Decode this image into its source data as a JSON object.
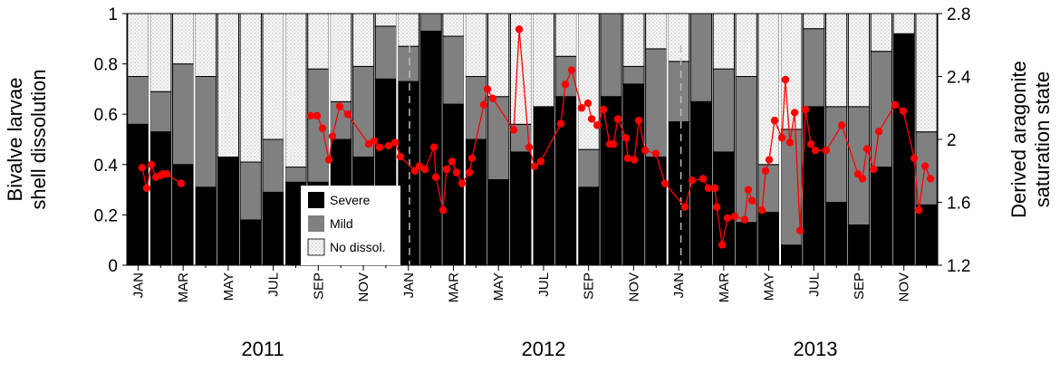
{
  "chart_data": {
    "type": "bar",
    "subtype": "stacked-bar-with-line",
    "ylabel_left": [
      "Bivalve larvae",
      "shell dissolution"
    ],
    "ylabel_right": [
      "Derived aragonite",
      "saturation state"
    ],
    "ylim_left": [
      0,
      1
    ],
    "ylim_right": [
      1.2,
      2.8
    ],
    "yticks_left": [
      "0",
      "0.2",
      "0.4",
      "0.6",
      "0.8",
      "1"
    ],
    "yticks_right": [
      "1.2",
      "1.6",
      "2",
      "2.4",
      "2.8"
    ],
    "month_tick_labels": [
      "JAN",
      "MAR",
      "MAY",
      "JUL",
      "SEP",
      "NOV",
      "JAN",
      "MAR",
      "MAY",
      "JUL",
      "SEP",
      "NOV",
      "JAN",
      "MAR",
      "MAY",
      "JUL",
      "SEP",
      "NOV"
    ],
    "years": [
      "2011",
      "2012",
      "2013"
    ],
    "legend": {
      "position": "bottom-left-center",
      "entries": [
        "Severe",
        "Mild",
        "No dissol."
      ]
    },
    "colors": {
      "severe": "#000000",
      "mild": "#808080",
      "none": "#f4f4f4",
      "line": "#ff0000"
    },
    "series": [
      {
        "name": "Severe",
        "values": [
          0.56,
          0.53,
          0.4,
          0.31,
          0.43,
          0.18,
          0.29,
          0.33,
          0.33,
          0.5,
          0.43,
          0.74,
          0.73,
          0.93,
          0.64,
          0.5,
          0.34,
          0.45,
          0.63,
          0.67,
          0.31,
          0.67,
          0.72,
          0.43,
          0.57,
          0.65,
          0.45,
          0.17,
          0.21,
          0.08,
          0.63,
          0.25,
          0.16,
          0.39,
          0.92,
          0.24
        ]
      },
      {
        "name": "Mild",
        "values": [
          0.19,
          0.16,
          0.4,
          0.44,
          0.0,
          0.23,
          0.21,
          0.06,
          0.45,
          0.15,
          0.36,
          0.21,
          0.14,
          0.07,
          0.27,
          0.25,
          0.33,
          0.11,
          0.0,
          0.16,
          0.15,
          0.33,
          0.07,
          0.43,
          0.24,
          0.35,
          0.33,
          0.58,
          0.19,
          0.46,
          0.31,
          0.38,
          0.47,
          0.46,
          0.0,
          0.29
        ]
      },
      {
        "name": "No dissol.",
        "values": [
          0.25,
          0.31,
          0.2,
          0.25,
          0.57,
          0.59,
          0.5,
          0.61,
          0.22,
          0.35,
          0.21,
          0.05,
          0.13,
          0.0,
          0.09,
          0.25,
          0.33,
          0.44,
          0.37,
          0.17,
          0.54,
          0.0,
          0.21,
          0.14,
          0.19,
          0.0,
          0.22,
          0.25,
          0.6,
          0.46,
          0.06,
          0.37,
          0.37,
          0.15,
          0.08,
          0.47
        ]
      }
    ],
    "omega_line": {
      "name": "Derived aragonite saturation state",
      "axis": "right",
      "x_unit": "months since Jan 2011 start",
      "segments": [
        [
          [
            0.68,
            1.82
          ],
          [
            0.88,
            1.69
          ],
          [
            1.09,
            1.84
          ],
          [
            1.29,
            1.76
          ],
          [
            1.49,
            1.77
          ],
          [
            1.61,
            1.78
          ],
          [
            1.77,
            1.78
          ],
          [
            2.41,
            1.72
          ]
        ],
        [
          [
            8.17,
            2.15
          ],
          [
            8.45,
            2.15
          ],
          [
            8.69,
            2.07
          ],
          [
            8.97,
            1.87
          ],
          [
            9.13,
            2.02
          ],
          [
            9.45,
            2.21
          ],
          [
            9.81,
            2.16
          ],
          [
            10.74,
            1.97
          ],
          [
            10.98,
            1.99
          ],
          [
            11.22,
            1.95
          ],
          [
            11.63,
            1.96
          ],
          [
            11.91,
            1.98
          ],
          [
            12.15,
            1.89
          ],
          [
            12.79,
            1.8
          ],
          [
            12.99,
            1.83
          ],
          [
            13.23,
            1.81
          ],
          [
            13.64,
            1.95
          ],
          [
            13.72,
            1.76
          ],
          [
            14.04,
            1.55
          ],
          [
            14.2,
            1.81
          ],
          [
            14.44,
            1.86
          ],
          [
            14.64,
            1.79
          ],
          [
            14.88,
            1.72
          ],
          [
            15.21,
            1.79
          ],
          [
            15.33,
            1.88
          ],
          [
            15.85,
            2.22
          ],
          [
            16.01,
            2.32
          ],
          [
            16.25,
            2.26
          ],
          [
            17.18,
            2.06
          ],
          [
            17.42,
            2.7
          ],
          [
            17.86,
            1.95
          ],
          [
            18.1,
            1.83
          ],
          [
            18.38,
            1.86
          ],
          [
            19.27,
            2.1
          ],
          [
            19.47,
            2.35
          ],
          [
            19.75,
            2.44
          ],
          [
            20.19,
            2.2
          ],
          [
            20.47,
            2.23
          ],
          [
            20.64,
            2.13
          ],
          [
            20.88,
            2.09
          ],
          [
            21.16,
            2.19
          ],
          [
            21.44,
            1.97
          ],
          [
            21.6,
            1.97
          ],
          [
            21.8,
            2.13
          ],
          [
            22.16,
            2.01
          ],
          [
            22.24,
            1.88
          ],
          [
            22.53,
            1.87
          ],
          [
            22.73,
            2.12
          ],
          [
            23.01,
            1.93
          ],
          [
            23.49,
            1.91
          ],
          [
            23.89,
            1.72
          ],
          [
            24.78,
            1.57
          ],
          [
            25.1,
            1.74
          ],
          [
            25.58,
            1.75
          ],
          [
            25.82,
            1.69
          ],
          [
            26.11,
            1.69
          ],
          [
            26.19,
            1.57
          ],
          [
            26.43,
            1.33
          ],
          [
            26.67,
            1.5
          ],
          [
            26.99,
            1.51
          ],
          [
            27.43,
            1.49
          ],
          [
            27.59,
            1.68
          ],
          [
            27.76,
            1.61
          ],
          [
            28.2,
            1.55
          ],
          [
            28.36,
            1.8
          ],
          [
            28.52,
            1.87
          ],
          [
            28.76,
            2.12
          ],
          [
            29.08,
            2.01
          ],
          [
            29.24,
            2.38
          ],
          [
            29.44,
            1.98
          ],
          [
            29.65,
            2.17
          ],
          [
            29.89,
            1.42
          ],
          [
            30.13,
            2.19
          ],
          [
            30.37,
            1.97
          ],
          [
            30.57,
            1.93
          ],
          [
            31.05,
            1.93
          ],
          [
            31.74,
            2.09
          ],
          [
            32.46,
            1.78
          ],
          [
            32.66,
            1.75
          ],
          [
            32.86,
            1.94
          ],
          [
            33.15,
            1.81
          ],
          [
            33.39,
            2.05
          ],
          [
            34.11,
            2.22
          ],
          [
            34.47,
            2.18
          ],
          [
            34.96,
            1.88
          ],
          [
            35.16,
            1.55
          ],
          [
            35.44,
            1.83
          ],
          [
            35.68,
            1.75
          ]
        ]
      ]
    },
    "dashed_reference_months": [
      12.55,
      24.6
    ]
  }
}
